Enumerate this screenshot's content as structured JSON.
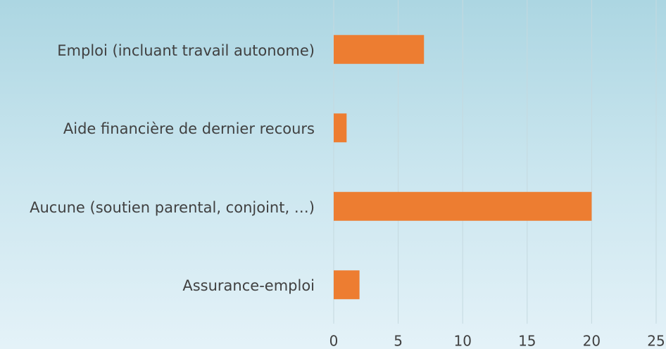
{
  "chart_data": {
    "type": "bar",
    "orientation": "horizontal",
    "categories": [
      "Emploi (incluant travail autonome)",
      "Aide financière de dernier recours",
      "Aucune (soutien parental, conjoint, …)",
      "Assurance-emploi"
    ],
    "values": [
      7,
      1,
      20,
      2
    ],
    "color": "#ed7d31",
    "xlim": [
      0,
      25
    ],
    "xticks": [
      0,
      5,
      10,
      15,
      20,
      25
    ],
    "grid": true
  }
}
